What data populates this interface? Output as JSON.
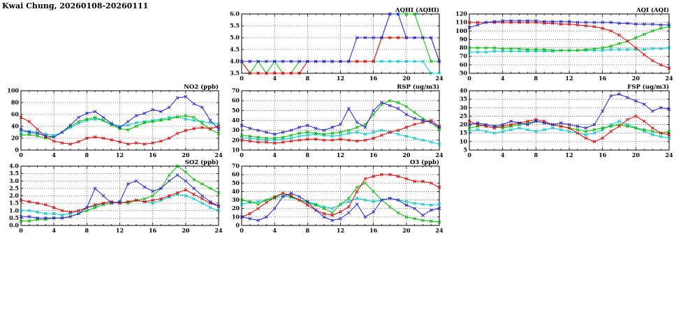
{
  "page": {
    "title": "Kwai Chung, 20260108-20260111"
  },
  "colors": {
    "red": "#dd0000",
    "green": "#00bb00",
    "blue": "#2222cc",
    "cyan": "#00c8c8",
    "grid": "#555555",
    "axis": "#000000"
  },
  "chart_data": [
    {
      "id": "aqhi",
      "type": "line",
      "title": "AQHI (AQHI)",
      "xlabel": "",
      "ylabel": "",
      "grid": true,
      "legend": "none",
      "xlim": [
        0,
        24
      ],
      "xstep": 4,
      "xminor": 1,
      "ylim": [
        3.5,
        6.0
      ],
      "ystep": 0.5,
      "ydec": 1,
      "x": [
        0,
        1,
        2,
        3,
        4,
        5,
        6,
        7,
        8,
        9,
        10,
        11,
        12,
        13,
        14,
        15,
        16,
        17,
        18,
        19,
        20,
        21,
        22,
        23,
        24
      ],
      "series": [
        {
          "name": "cyan-series",
          "color": "cyan",
          "values": [
            4,
            4,
            4,
            4,
            4,
            4,
            4,
            4,
            4,
            4,
            4,
            4,
            4,
            4,
            4,
            4,
            4,
            4,
            4,
            4,
            4,
            4,
            4,
            3.5,
            3.5
          ]
        },
        {
          "name": "green-series",
          "color": "green",
          "values": [
            4,
            3.5,
            4,
            3.5,
            4,
            3.5,
            3.5,
            4,
            4,
            4,
            4,
            4,
            4,
            4,
            4,
            4,
            4,
            5,
            6,
            6,
            6,
            6,
            5,
            4,
            4
          ]
        },
        {
          "name": "red-series",
          "color": "red",
          "values": [
            4,
            3.5,
            3.5,
            3.5,
            3.5,
            3.5,
            3.5,
            3.5,
            4,
            4,
            4,
            4,
            4,
            4,
            4,
            4,
            4,
            5,
            5,
            5,
            5,
            5,
            5,
            5,
            4
          ]
        },
        {
          "name": "blue-series",
          "color": "blue",
          "values": [
            4,
            4,
            4,
            4,
            4,
            4,
            4,
            4,
            4,
            4,
            4,
            4,
            4,
            4,
            5,
            5,
            5,
            5,
            6,
            6,
            5,
            5,
            5,
            5,
            4
          ]
        }
      ]
    },
    {
      "id": "aqi",
      "type": "line",
      "title": "AQI (AQI)",
      "xlabel": "",
      "ylabel": "",
      "grid": true,
      "legend": "none",
      "xlim": [
        0,
        24
      ],
      "xstep": 4,
      "xminor": 1,
      "ylim": [
        50,
        120
      ],
      "ystep": 10,
      "ydec": 0,
      "x": [
        0,
        1,
        2,
        3,
        4,
        5,
        6,
        7,
        8,
        9,
        10,
        11,
        12,
        13,
        14,
        15,
        16,
        17,
        18,
        19,
        20,
        21,
        22,
        23,
        24
      ],
      "series": [
        {
          "name": "cyan-series",
          "color": "cyan",
          "values": [
            75,
            75,
            75,
            76,
            76,
            76,
            76,
            76,
            76,
            76,
            76,
            77,
            77,
            77,
            77,
            77,
            77,
            78,
            78,
            78,
            78,
            78,
            79,
            79,
            80
          ]
        },
        {
          "name": "green-series",
          "color": "green",
          "values": [
            80,
            80,
            80,
            80,
            79,
            79,
            79,
            78,
            78,
            78,
            77,
            77,
            77,
            77,
            78,
            79,
            80,
            82,
            85,
            88,
            92,
            96,
            100,
            103,
            105
          ]
        },
        {
          "name": "red-series",
          "color": "red",
          "values": [
            110,
            110,
            110,
            110,
            110,
            110,
            110,
            110,
            110,
            109,
            109,
            108,
            108,
            107,
            106,
            105,
            103,
            100,
            95,
            88,
            80,
            72,
            65,
            60,
            56
          ]
        },
        {
          "name": "blue-series",
          "color": "blue",
          "values": [
            104,
            107,
            110,
            111,
            112,
            112,
            112,
            112,
            112,
            111,
            111,
            111,
            111,
            110,
            110,
            110,
            110,
            110,
            109,
            109,
            108,
            108,
            108,
            107,
            107
          ]
        }
      ]
    },
    {
      "id": "no2",
      "type": "line",
      "title": "NO2 (ppb)",
      "xlabel": "",
      "ylabel": "",
      "grid": true,
      "legend": "none",
      "xlim": [
        0,
        24
      ],
      "xstep": 4,
      "xminor": 1,
      "ylim": [
        0,
        100
      ],
      "ystep": 20,
      "ydec": 0,
      "x": [
        0,
        1,
        2,
        3,
        4,
        5,
        6,
        7,
        8,
        9,
        10,
        11,
        12,
        13,
        14,
        15,
        16,
        17,
        18,
        19,
        20,
        21,
        22,
        23,
        24
      ],
      "series": [
        {
          "name": "cyan-series",
          "color": "cyan",
          "values": [
            30,
            32,
            30,
            27,
            25,
            30,
            38,
            45,
            50,
            52,
            50,
            44,
            40,
            42,
            46,
            48,
            50,
            52,
            55,
            56,
            52,
            50,
            48,
            46,
            44
          ]
        },
        {
          "name": "green-series",
          "color": "green",
          "values": [
            25,
            26,
            24,
            20,
            22,
            30,
            40,
            48,
            52,
            55,
            50,
            42,
            36,
            34,
            40,
            46,
            48,
            50,
            52,
            56,
            58,
            55,
            45,
            35,
            28
          ]
        },
        {
          "name": "red-series",
          "color": "red",
          "values": [
            55,
            48,
            35,
            22,
            15,
            12,
            10,
            14,
            20,
            22,
            20,
            17,
            14,
            10,
            12,
            10,
            12,
            15,
            20,
            28,
            33,
            36,
            38,
            36,
            40
          ]
        },
        {
          "name": "blue-series",
          "color": "blue",
          "values": [
            35,
            30,
            28,
            24,
            22,
            30,
            42,
            55,
            62,
            65,
            55,
            45,
            38,
            48,
            58,
            62,
            68,
            65,
            72,
            88,
            90,
            78,
            72,
            50,
            35
          ]
        }
      ]
    },
    {
      "id": "rsp",
      "type": "line",
      "title": "RSP (ug/m3)",
      "xlabel": "",
      "ylabel": "",
      "grid": true,
      "legend": "none",
      "xlim": [
        0,
        24
      ],
      "xstep": 4,
      "xminor": 1,
      "ylim": [
        10,
        70
      ],
      "ystep": 10,
      "ydec": 0,
      "x": [
        0,
        1,
        2,
        3,
        4,
        5,
        6,
        7,
        8,
        9,
        10,
        11,
        12,
        13,
        14,
        15,
        16,
        17,
        18,
        19,
        20,
        21,
        22,
        23,
        24
      ],
      "series": [
        {
          "name": "cyan-series",
          "color": "cyan",
          "values": [
            22,
            22,
            21,
            20,
            20,
            21,
            22,
            24,
            25,
            26,
            25,
            24,
            25,
            27,
            28,
            26,
            28,
            30,
            28,
            26,
            24,
            22,
            20,
            18,
            16
          ]
        },
        {
          "name": "green-series",
          "color": "green",
          "values": [
            25,
            24,
            23,
            22,
            22,
            23,
            25,
            27,
            28,
            27,
            26,
            27,
            28,
            30,
            33,
            36,
            46,
            56,
            60,
            58,
            54,
            48,
            42,
            38,
            31
          ]
        },
        {
          "name": "red-series",
          "color": "red",
          "values": [
            20,
            19,
            18,
            18,
            17,
            18,
            19,
            20,
            21,
            21,
            20,
            20,
            21,
            20,
            19,
            20,
            22,
            25,
            28,
            30,
            33,
            36,
            38,
            40,
            34
          ]
        },
        {
          "name": "blue-series",
          "color": "blue",
          "values": [
            35,
            32,
            30,
            28,
            26,
            28,
            30,
            33,
            35,
            32,
            30,
            33,
            36,
            52,
            38,
            33,
            50,
            58,
            55,
            52,
            46,
            42,
            40,
            38,
            33
          ]
        }
      ]
    },
    {
      "id": "fsp",
      "type": "line",
      "title": "FSP (ug/m3)",
      "xlabel": "",
      "ylabel": "",
      "grid": true,
      "legend": "none",
      "xlim": [
        0,
        24
      ],
      "xstep": 4,
      "xminor": 1,
      "ylim": [
        5,
        40
      ],
      "ystep": 5,
      "ydec": 0,
      "x": [
        0,
        1,
        2,
        3,
        4,
        5,
        6,
        7,
        8,
        9,
        10,
        11,
        12,
        13,
        14,
        15,
        16,
        17,
        18,
        19,
        20,
        21,
        22,
        23,
        24
      ],
      "series": [
        {
          "name": "cyan-series",
          "color": "cyan",
          "values": [
            16,
            17,
            16,
            15,
            16,
            17,
            18,
            17,
            16,
            17,
            18,
            17,
            16,
            15,
            14,
            15,
            17,
            20,
            22,
            20,
            18,
            16,
            14,
            13,
            12
          ]
        },
        {
          "name": "green-series",
          "color": "green",
          "values": [
            18,
            19,
            20,
            19,
            18,
            19,
            20,
            21,
            22,
            21,
            20,
            19,
            18,
            17,
            16,
            17,
            18,
            19,
            20,
            19,
            18,
            17,
            16,
            15,
            16
          ]
        },
        {
          "name": "red-series",
          "color": "red",
          "values": [
            22,
            20,
            19,
            18,
            19,
            20,
            21,
            22,
            23,
            22,
            20,
            19,
            18,
            15,
            12,
            10,
            12,
            16,
            19,
            23,
            25,
            22,
            18,
            15,
            14
          ]
        },
        {
          "name": "blue-series",
          "color": "blue",
          "values": [
            20,
            21,
            20,
            19,
            20,
            22,
            21,
            20,
            22,
            21,
            20,
            21,
            20,
            19,
            18,
            20,
            28,
            37,
            38,
            36,
            34,
            32,
            28,
            30,
            29
          ]
        }
      ]
    },
    {
      "id": "so2",
      "type": "line",
      "title": "SO2 (ppb)",
      "xlabel": "",
      "ylabel": "",
      "grid": true,
      "legend": "none",
      "xlim": [
        0,
        24
      ],
      "xstep": 4,
      "xminor": 1,
      "ylim": [
        0,
        4.0
      ],
      "ystep": 0.5,
      "ydec": 1,
      "x": [
        0,
        1,
        2,
        3,
        4,
        5,
        6,
        7,
        8,
        9,
        10,
        11,
        12,
        13,
        14,
        15,
        16,
        17,
        18,
        19,
        20,
        21,
        22,
        23,
        24
      ],
      "series": [
        {
          "name": "cyan-series",
          "color": "cyan",
          "values": [
            1.0,
            1.0,
            0.9,
            0.8,
            0.8,
            0.7,
            0.8,
            1.0,
            1.2,
            1.3,
            1.5,
            1.6,
            1.5,
            1.6,
            1.7,
            1.6,
            1.5,
            1.7,
            1.9,
            2.1,
            2.0,
            1.8,
            1.5,
            1.2,
            1.0
          ]
        },
        {
          "name": "green-series",
          "color": "green",
          "values": [
            0.3,
            0.3,
            0.4,
            0.4,
            0.5,
            0.5,
            0.6,
            0.8,
            1.0,
            1.2,
            1.4,
            1.5,
            1.6,
            1.5,
            1.7,
            1.8,
            2.0,
            2.5,
            3.4,
            4.0,
            3.6,
            3.1,
            2.8,
            2.5,
            2.2
          ]
        },
        {
          "name": "red-series",
          "color": "red",
          "values": [
            1.7,
            1.6,
            1.5,
            1.4,
            1.2,
            1.0,
            0.9,
            1.0,
            1.2,
            1.4,
            1.5,
            1.6,
            1.5,
            1.6,
            1.7,
            1.6,
            1.7,
            1.8,
            2.0,
            2.2,
            2.4,
            2.1,
            1.8,
            1.5,
            1.3
          ]
        },
        {
          "name": "blue-series",
          "color": "blue",
          "values": [
            0.6,
            0.6,
            0.5,
            0.5,
            0.5,
            0.5,
            0.6,
            0.8,
            1.2,
            2.5,
            2.0,
            1.5,
            1.6,
            2.8,
            3.0,
            2.6,
            2.3,
            2.5,
            3.0,
            3.4,
            3.0,
            2.5,
            2.0,
            1.6,
            1.3
          ]
        }
      ]
    },
    {
      "id": "o3",
      "type": "line",
      "title": "O3 (ppb)",
      "xlabel": "",
      "ylabel": "",
      "grid": true,
      "legend": "none",
      "xlim": [
        0,
        24
      ],
      "xstep": 4,
      "xminor": 1,
      "ylim": [
        0,
        70
      ],
      "ystep": 10,
      "ydec": 0,
      "x": [
        0,
        1,
        2,
        3,
        4,
        5,
        6,
        7,
        8,
        9,
        10,
        11,
        12,
        13,
        14,
        15,
        16,
        17,
        18,
        19,
        20,
        21,
        22,
        23,
        24
      ],
      "series": [
        {
          "name": "cyan-series",
          "color": "cyan",
          "values": [
            25,
            27,
            28,
            30,
            32,
            35,
            33,
            30,
            28,
            25,
            22,
            20,
            25,
            28,
            32,
            30,
            28,
            30,
            32,
            30,
            28,
            26,
            25,
            24,
            25
          ]
        },
        {
          "name": "green-series",
          "color": "green",
          "values": [
            30,
            28,
            25,
            30,
            34,
            38,
            34,
            30,
            27,
            24,
            20,
            15,
            25,
            32,
            45,
            50,
            40,
            30,
            22,
            15,
            10,
            8,
            6,
            5,
            4
          ]
        },
        {
          "name": "red-series",
          "color": "red",
          "values": [
            10,
            14,
            20,
            27,
            33,
            38,
            35,
            30,
            24,
            18,
            14,
            12,
            16,
            22,
            40,
            55,
            58,
            60,
            60,
            58,
            55,
            52,
            52,
            50,
            45
          ]
        },
        {
          "name": "blue-series",
          "color": "blue",
          "values": [
            10,
            8,
            6,
            10,
            20,
            34,
            38,
            34,
            28,
            18,
            10,
            6,
            8,
            15,
            25,
            10,
            16,
            30,
            32,
            30,
            24,
            20,
            12,
            18,
            20
          ]
        }
      ]
    }
  ]
}
